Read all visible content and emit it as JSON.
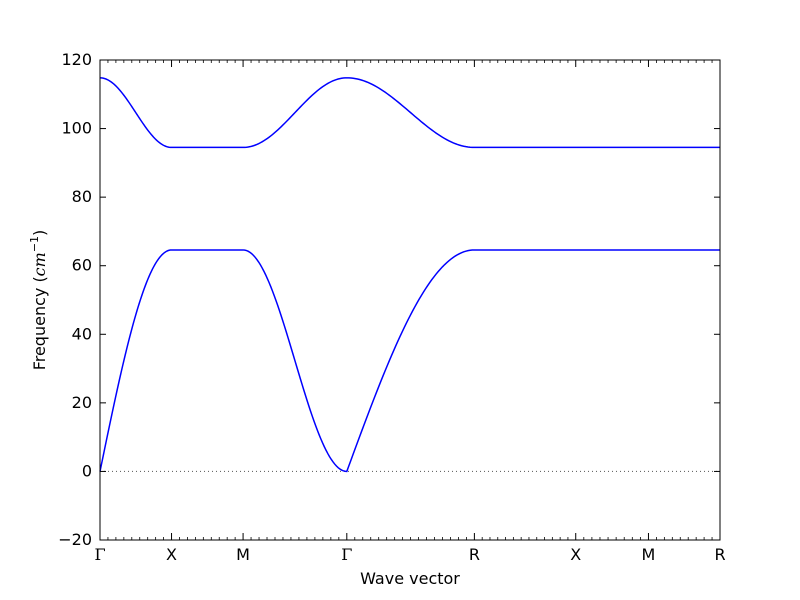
{
  "chart_data": {
    "type": "line",
    "xlabel": "Wave vector",
    "ylabel_prefix": "Frequency (",
    "ylabel_unit_base": "cm",
    "ylabel_unit_exp": "−1",
    "ylabel_suffix": ")",
    "ylim": [
      -20,
      120
    ],
    "yticks": [
      -20,
      0,
      20,
      40,
      60,
      80,
      100,
      120
    ],
    "ytick_labels": [
      "−20",
      "0",
      "20",
      "40",
      "60",
      "80",
      "100",
      "120"
    ],
    "xlim": [
      0,
      5.2
    ],
    "high_symmetry_points": [
      {
        "label": "Γ",
        "x": 0
      },
      {
        "label": "X",
        "x": 0.6
      },
      {
        "label": "M",
        "x": 1.2
      },
      {
        "label": "Γ",
        "x": 2.07
      },
      {
        "label": "R",
        "x": 3.14
      },
      {
        "label": "X",
        "x": 3.99
      },
      {
        "label": "M",
        "x": 4.6
      },
      {
        "label": "R",
        "x": 5.2
      }
    ],
    "zero_line": {
      "y": 0,
      "style": "dotted",
      "color": "#555555"
    },
    "grid": false,
    "series": [
      {
        "band": "acoustic",
        "color": "#0000ff",
        "segments": [
          {
            "from": "Γ",
            "to": "X",
            "shape": "sine",
            "start": 0,
            "end": 64.6
          },
          {
            "from": "X",
            "to": "M",
            "shape": "flat",
            "start": 64.6,
            "end": 64.6
          },
          {
            "from": "M",
            "to": "Γ",
            "shape": "cos",
            "start": 64.6,
            "end": 0
          },
          {
            "from": "Γ",
            "to": "R",
            "shape": "sine",
            "start": 0,
            "end": 64.6
          },
          {
            "from": "R",
            "to": "X",
            "shape": "flat",
            "start": 64.6,
            "end": 64.6
          },
          {
            "from": "X",
            "to": "M",
            "shape": "flat",
            "start": 64.6,
            "end": 64.6
          },
          {
            "from": "M",
            "to": "R",
            "shape": "flat",
            "start": 64.6,
            "end": 64.6
          }
        ]
      },
      {
        "band": "optical",
        "color": "#0000ff",
        "segments": [
          {
            "from": "Γ",
            "to": "X",
            "shape": "cos",
            "start": 114.8,
            "end": 94.5
          },
          {
            "from": "X",
            "to": "M",
            "shape": "flat",
            "start": 94.5,
            "end": 94.5
          },
          {
            "from": "M",
            "to": "Γ",
            "shape": "cos",
            "start": 94.5,
            "end": 114.8
          },
          {
            "from": "Γ",
            "to": "R",
            "shape": "cos",
            "start": 114.8,
            "end": 94.5
          },
          {
            "from": "R",
            "to": "X",
            "shape": "flat",
            "start": 94.5,
            "end": 94.5
          },
          {
            "from": "X",
            "to": "M",
            "shape": "flat",
            "start": 94.5,
            "end": 94.5
          },
          {
            "from": "M",
            "to": "R",
            "shape": "flat",
            "start": 94.5,
            "end": 94.5
          }
        ]
      }
    ]
  }
}
